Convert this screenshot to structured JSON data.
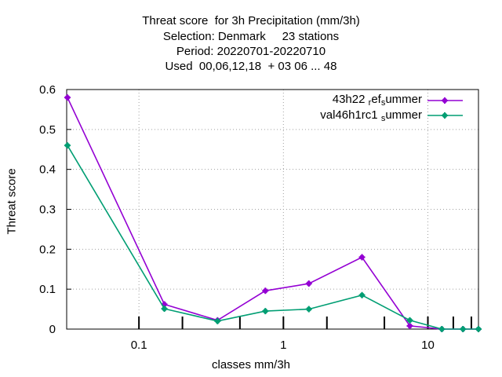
{
  "title_lines": [
    "Threat score  for 3h Precipitation (mm/3h)",
    "Selection: Denmark     23 stations",
    "Period: 20220701-20220710",
    "Used  00,06,12,18  + 03 06 ... 48"
  ],
  "chart_data": {
    "type": "line",
    "xlabel": "classes mm/3h",
    "ylabel": "Threat score",
    "xscale": "log",
    "xlim": [
      0.0316,
      22.4
    ],
    "ylim": [
      0,
      0.6
    ],
    "xticks": [
      {
        "value": 0.1,
        "label": "0.1"
      },
      {
        "value": 1,
        "label": "1"
      },
      {
        "value": 10,
        "label": "10"
      }
    ],
    "yticks": [
      {
        "value": 0,
        "label": "0"
      },
      {
        "value": 0.1,
        "label": "0.1"
      },
      {
        "value": 0.2,
        "label": "0.2"
      },
      {
        "value": 0.3,
        "label": "0.3"
      },
      {
        "value": 0.4,
        "label": "0.4"
      },
      {
        "value": 0.5,
        "label": "0.5"
      },
      {
        "value": 0.6,
        "label": "0.6"
      }
    ],
    "grid": true,
    "legend_position": "top-right",
    "x": [
      0.032,
      0.15,
      0.35,
      0.75,
      1.5,
      3.5,
      7.5,
      12.5,
      17.5,
      22.4
    ],
    "series": [
      {
        "name": "43h22_ref_summer",
        "legend_parts": [
          "43h22 ",
          "r",
          "ef",
          "s",
          "ummer"
        ],
        "color": "#9400d3",
        "values": [
          0.58,
          0.062,
          0.022,
          0.096,
          0.114,
          0.18,
          0.008,
          0.0,
          0.0,
          0.0
        ]
      },
      {
        "name": "val46h1rc1_summer",
        "legend_parts": [
          "val46h1rc1 ",
          "s",
          "ummer"
        ],
        "color": "#009e73",
        "values": [
          0.46,
          0.051,
          0.02,
          0.045,
          0.05,
          0.085,
          0.022,
          0.0,
          0.0,
          0.0
        ]
      }
    ],
    "minor_tick_marks_x": [
      0.1,
      0.2,
      0.5,
      1,
      2,
      5,
      10,
      15,
      20
    ]
  }
}
